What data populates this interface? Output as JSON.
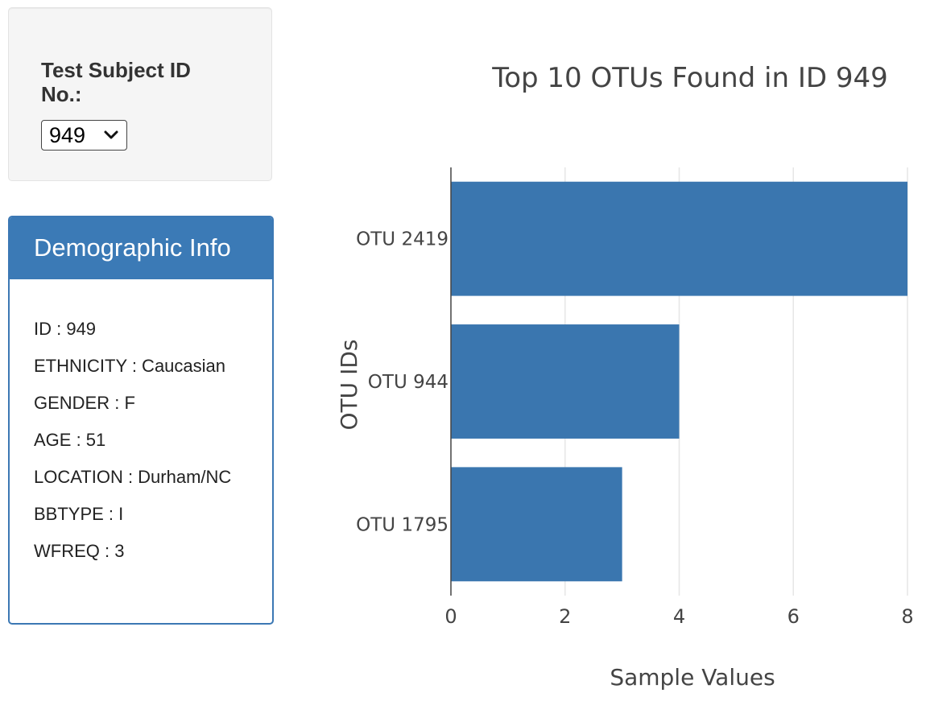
{
  "selector": {
    "label": "Test Subject ID No.:",
    "selected": "949"
  },
  "demographics": {
    "heading": "Demographic Info",
    "lines": [
      "ID : 949",
      "ETHNICITY : Caucasian",
      "GENDER : F",
      "AGE : 51",
      "LOCATION : Durham/NC",
      "BBTYPE : I",
      "WFREQ : 3"
    ]
  },
  "chart_data": {
    "type": "bar",
    "orientation": "horizontal",
    "title": "Top 10 OTUs Found in ID 949",
    "xlabel": "Sample Values",
    "ylabel": "OTU IDs",
    "categories": [
      "OTU 2419",
      "OTU 944",
      "OTU 1795"
    ],
    "values": [
      8,
      4,
      3
    ],
    "xlim": [
      0,
      8
    ],
    "xticks": [
      0,
      2,
      4,
      6,
      8
    ],
    "grid": "vertical",
    "color": "#3a76af"
  }
}
